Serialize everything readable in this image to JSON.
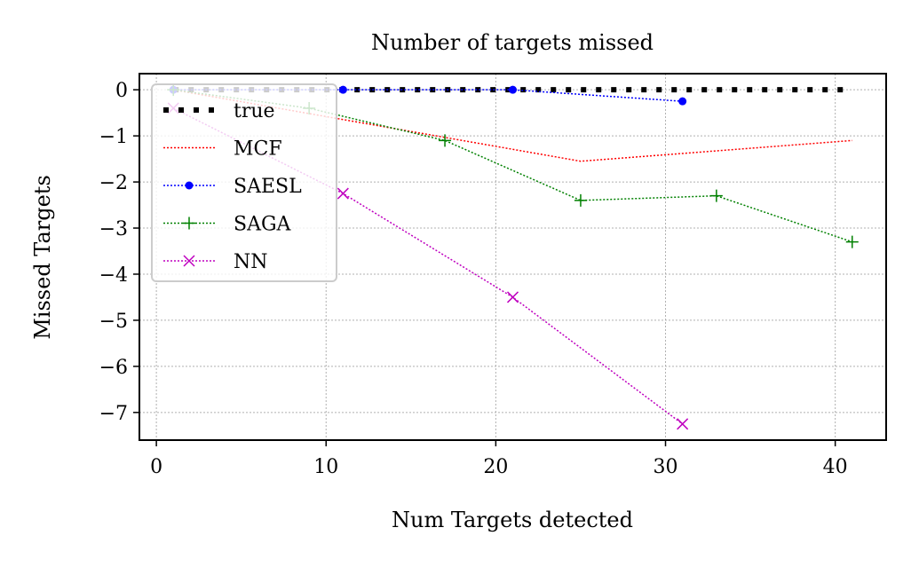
{
  "chart_data": {
    "type": "line",
    "title": "Number of targets missed",
    "xlabel": "Num Targets detected",
    "ylabel": "Missed Targets",
    "xlim": [
      -1,
      43
    ],
    "ylim": [
      -7.6,
      0.35
    ],
    "xticks": [
      0,
      10,
      20,
      30,
      40
    ],
    "yticks": [
      0,
      -1,
      -2,
      -3,
      -4,
      -5,
      -6,
      -7
    ],
    "xtick_labels": [
      "0",
      "10",
      "20",
      "30",
      "40"
    ],
    "ytick_labels": [
      "0",
      "−1",
      "−2",
      "−3",
      "−4",
      "−5",
      "−6",
      "−7"
    ],
    "grid": true,
    "legend_position": "top-left",
    "series": [
      {
        "name": "true",
        "color": "#000000",
        "style": "dotted-heavy",
        "marker": "none",
        "x": [
          1,
          41
        ],
        "y": [
          0,
          0
        ]
      },
      {
        "name": "MCF",
        "color": "#ff0000",
        "style": "dotted",
        "marker": "none",
        "x": [
          1,
          25,
          41
        ],
        "y": [
          0,
          -1.55,
          -1.1
        ]
      },
      {
        "name": "SAESL",
        "color": "#0000ff",
        "style": "dotted",
        "marker": "dot",
        "x": [
          1,
          11,
          21,
          31
        ],
        "y": [
          0,
          0,
          0,
          -0.25
        ]
      },
      {
        "name": "SAGA",
        "color": "#008000",
        "style": "dotted",
        "marker": "plus",
        "x": [
          1,
          9,
          17,
          25,
          33,
          41
        ],
        "y": [
          0,
          -0.4,
          -1.1,
          -2.4,
          -2.3,
          -3.3
        ]
      },
      {
        "name": "NN",
        "color": "#bf00bf",
        "style": "dotted",
        "marker": "x",
        "x": [
          1,
          11,
          21,
          31
        ],
        "y": [
          -0.4,
          -2.25,
          -4.5,
          -7.25
        ]
      }
    ]
  }
}
